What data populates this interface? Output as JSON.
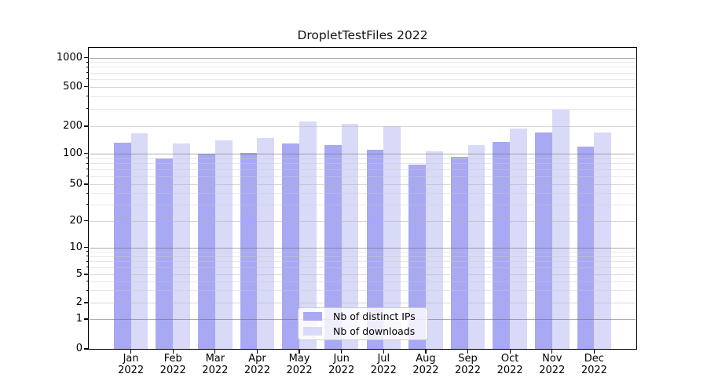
{
  "chart_data": {
    "type": "bar",
    "title": "DropletTestFiles 2022",
    "categories": [
      "Jan",
      "Feb",
      "Mar",
      "Apr",
      "May",
      "Jun",
      "Jul",
      "Aug",
      "Sep",
      "Oct",
      "Nov",
      "Dec"
    ],
    "category_year": "2022",
    "series": [
      {
        "name": "Nb of distinct IPs",
        "color": "#a8a8f3",
        "values": [
          130,
          89,
          100,
          102,
          129,
          124,
          109,
          78,
          92,
          134,
          171,
          119
        ]
      },
      {
        "name": "Nb of downloads",
        "color": "#d9d9f8",
        "values": [
          168,
          128,
          139,
          149,
          224,
          211,
          201,
          105,
          124,
          190,
          292,
          171
        ]
      }
    ],
    "yscale": "symlog",
    "ylim": [
      0,
      1000
    ],
    "yticks": [
      0,
      1,
      2,
      5,
      10,
      20,
      50,
      100,
      200,
      500,
      1000
    ],
    "xlabel": "",
    "ylabel": "",
    "grid": "both",
    "legend_position": "lower center",
    "axis_color": "#000000",
    "major_grid_color": "#bbbbbb",
    "minor_grid_color": "#e6e6e6"
  }
}
